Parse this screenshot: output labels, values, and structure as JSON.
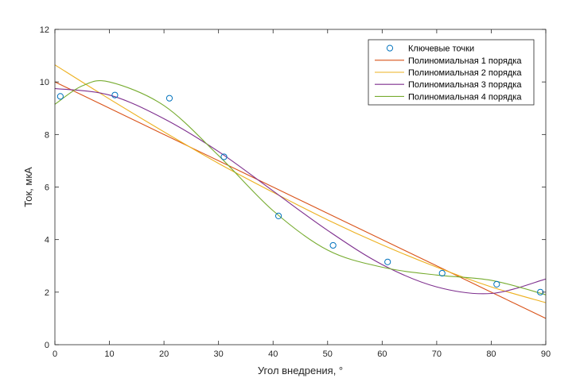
{
  "chart_data": {
    "type": "line",
    "xlabel": "Угол внедрения, °",
    "ylabel": "Ток, мкА",
    "xlim": [
      0,
      90
    ],
    "ylim": [
      0,
      12
    ],
    "xticks": [
      0,
      10,
      20,
      30,
      40,
      50,
      60,
      70,
      80,
      90
    ],
    "yticks": [
      0,
      2,
      4,
      6,
      8,
      10,
      12
    ],
    "grid": false,
    "legend_position": "top-right",
    "points": {
      "name": "Ключевые точки",
      "color": "#0072BD",
      "marker": "circle",
      "x": [
        1,
        11,
        21,
        31,
        41,
        51,
        61,
        71,
        81,
        89
      ],
      "y": [
        9.45,
        9.5,
        9.38,
        7.15,
        4.9,
        3.78,
        3.15,
        2.72,
        2.3,
        2.0
      ]
    },
    "series": [
      {
        "name": "Полиномиальная 1 порядка",
        "color": "#D95319",
        "x": [
          0,
          10,
          20,
          30,
          40,
          50,
          60,
          70,
          80,
          90
        ],
        "y": [
          10.0,
          9.0,
          8.0,
          7.0,
          6.0,
          5.0,
          4.0,
          3.0,
          2.0,
          1.0
        ]
      },
      {
        "name": "Полиномиальная 2 порядка",
        "color": "#EDB120",
        "x": [
          0,
          10,
          20,
          30,
          40,
          50,
          60,
          70,
          80,
          90
        ],
        "y": [
          10.65,
          9.35,
          8.1,
          6.9,
          5.8,
          4.75,
          3.8,
          2.95,
          2.2,
          1.6
        ]
      },
      {
        "name": "Полиномиальная 3 порядка",
        "color": "#7E2F8E",
        "x": [
          0,
          10,
          20,
          30,
          40,
          50,
          60,
          70,
          80,
          90
        ],
        "y": [
          9.75,
          9.5,
          8.6,
          7.35,
          5.85,
          4.35,
          3.05,
          2.2,
          1.95,
          2.5
        ]
      },
      {
        "name": "Полиномиальная 4 порядка",
        "color": "#77AC30",
        "x": [
          0,
          5,
          10,
          20,
          30,
          40,
          50,
          60,
          70,
          80,
          90
        ],
        "y": [
          9.15,
          9.85,
          10.0,
          9.1,
          7.2,
          5.1,
          3.6,
          2.95,
          2.65,
          2.45,
          1.9
        ]
      }
    ]
  }
}
